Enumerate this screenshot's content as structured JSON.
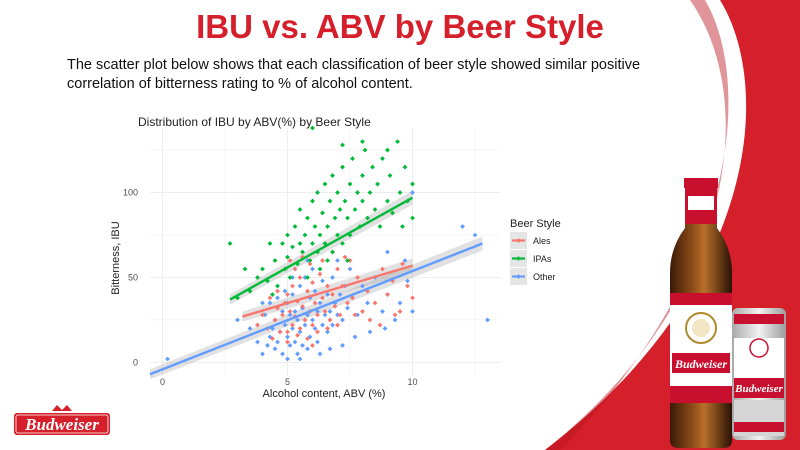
{
  "slide": {
    "title": "IBU vs. ABV by Beer Style",
    "body": "The scatter plot below shows that each classification of beer style showed similar positive correlation of bitterness rating to % of alcohol content.",
    "brand_red": "#d51f2a"
  },
  "brand": {
    "logo_text": "Budweiser",
    "bottle_label": "Budweiser",
    "can_label": "Budweiser"
  },
  "chart_data": {
    "type": "scatter",
    "title": "Distribution of IBU by ABV(%) by Beer Style",
    "xlabel": "Alcohol content, ABV (%)",
    "ylabel": "Bitterness, IBU",
    "xlim": [
      -0.5,
      13.5
    ],
    "ylim": [
      -8,
      138
    ],
    "xticks": [
      0,
      5,
      10
    ],
    "yticks": [
      0,
      50,
      100
    ],
    "grid": true,
    "legend": {
      "title": "Beer Style",
      "placement": "right"
    },
    "series": [
      {
        "name": "Ales",
        "color": "#f8766d",
        "trend": {
          "x": [
            3.2,
            10.0
          ],
          "y": [
            27,
            57
          ]
        },
        "points": [
          [
            4.2,
            20
          ],
          [
            4.5,
            25
          ],
          [
            4.6,
            32
          ],
          [
            4.8,
            28
          ],
          [
            4.9,
            35
          ],
          [
            5.0,
            18
          ],
          [
            5.0,
            40
          ],
          [
            5.1,
            30
          ],
          [
            5.2,
            22
          ],
          [
            5.2,
            45
          ],
          [
            5.3,
            27
          ],
          [
            5.4,
            36
          ],
          [
            5.5,
            20
          ],
          [
            5.5,
            50
          ],
          [
            5.6,
            33
          ],
          [
            5.7,
            25
          ],
          [
            5.8,
            42
          ],
          [
            5.9,
            30
          ],
          [
            6.0,
            22
          ],
          [
            6.0,
            47
          ],
          [
            6.1,
            35
          ],
          [
            6.2,
            28
          ],
          [
            6.3,
            52
          ],
          [
            6.4,
            38
          ],
          [
            6.5,
            30
          ],
          [
            6.6,
            45
          ],
          [
            6.7,
            25
          ],
          [
            6.8,
            40
          ],
          [
            6.9,
            33
          ],
          [
            7.0,
            55
          ],
          [
            7.1,
            28
          ],
          [
            7.2,
            45
          ],
          [
            7.4,
            35
          ],
          [
            7.5,
            60
          ],
          [
            7.6,
            38
          ],
          [
            7.8,
            50
          ],
          [
            8.0,
            30
          ],
          [
            8.2,
            42
          ],
          [
            8.5,
            35
          ],
          [
            8.8,
            55
          ],
          [
            9.0,
            40
          ],
          [
            9.2,
            48
          ],
          [
            9.5,
            30
          ],
          [
            9.8,
            45
          ],
          [
            10.0,
            38
          ],
          [
            4.4,
            14
          ],
          [
            4.7,
            18
          ],
          [
            5.0,
            12
          ],
          [
            5.4,
            16
          ],
          [
            5.8,
            14
          ],
          [
            6.2,
            18
          ],
          [
            6.6,
            20
          ],
          [
            7.0,
            22
          ],
          [
            5.1,
            60
          ],
          [
            5.6,
            62
          ],
          [
            6.8,
            65
          ],
          [
            7.3,
            62
          ],
          [
            8.3,
            25
          ],
          [
            9.6,
            58
          ],
          [
            6.0,
            10
          ],
          [
            3.8,
            22
          ],
          [
            4.0,
            28
          ],
          [
            5.3,
            55
          ],
          [
            5.9,
            58
          ],
          [
            6.4,
            60
          ],
          [
            7.7,
            28
          ],
          [
            8.7,
            22
          ],
          [
            9.3,
            28
          ],
          [
            4.3,
            38
          ],
          [
            4.6,
            42
          ]
        ]
      },
      {
        "name": "IPAs",
        "color": "#00ba38",
        "trend": {
          "x": [
            2.7,
            10.0
          ],
          "y": [
            37,
            97
          ]
        },
        "points": [
          [
            2.7,
            70
          ],
          [
            3.0,
            38
          ],
          [
            3.5,
            42
          ],
          [
            3.8,
            50
          ],
          [
            4.0,
            55
          ],
          [
            4.2,
            48
          ],
          [
            4.3,
            70
          ],
          [
            4.5,
            60
          ],
          [
            4.6,
            45
          ],
          [
            4.8,
            70
          ],
          [
            4.9,
            55
          ],
          [
            5.0,
            62
          ],
          [
            5.0,
            75
          ],
          [
            5.1,
            50
          ],
          [
            5.2,
            68
          ],
          [
            5.3,
            80
          ],
          [
            5.4,
            58
          ],
          [
            5.5,
            70
          ],
          [
            5.5,
            90
          ],
          [
            5.6,
            65
          ],
          [
            5.7,
            75
          ],
          [
            5.8,
            85
          ],
          [
            5.9,
            60
          ],
          [
            6.0,
            70
          ],
          [
            6.0,
            95
          ],
          [
            6.1,
            80
          ],
          [
            6.2,
            65
          ],
          [
            6.2,
            100
          ],
          [
            6.3,
            75
          ],
          [
            6.4,
            88
          ],
          [
            6.5,
            70
          ],
          [
            6.5,
            105
          ],
          [
            6.6,
            80
          ],
          [
            6.7,
            95
          ],
          [
            6.8,
            65
          ],
          [
            6.8,
            110
          ],
          [
            6.9,
            85
          ],
          [
            7.0,
            75
          ],
          [
            7.0,
            100
          ],
          [
            7.1,
            90
          ],
          [
            7.2,
            70
          ],
          [
            7.2,
            115
          ],
          [
            7.3,
            95
          ],
          [
            7.4,
            85
          ],
          [
            7.5,
            105
          ],
          [
            7.5,
            75
          ],
          [
            7.6,
            120
          ],
          [
            7.7,
            90
          ],
          [
            7.8,
            100
          ],
          [
            7.9,
            80
          ],
          [
            8.0,
            110
          ],
          [
            8.0,
            95
          ],
          [
            8.1,
            125
          ],
          [
            8.2,
            85
          ],
          [
            8.3,
            100
          ],
          [
            8.4,
            115
          ],
          [
            8.5,
            90
          ],
          [
            8.6,
            105
          ],
          [
            8.7,
            80
          ],
          [
            8.8,
            120
          ],
          [
            9.0,
            95
          ],
          [
            9.1,
            110
          ],
          [
            9.2,
            88
          ],
          [
            9.4,
            130
          ],
          [
            9.5,
            100
          ],
          [
            9.6,
            80
          ],
          [
            9.7,
            115
          ],
          [
            9.8,
            95
          ],
          [
            10.0,
            105
          ],
          [
            10.0,
            85
          ],
          [
            6.0,
            138
          ],
          [
            7.2,
            128
          ],
          [
            8.0,
            130
          ],
          [
            9.0,
            125
          ],
          [
            5.8,
            50
          ],
          [
            6.3,
            55
          ],
          [
            4.4,
            40
          ],
          [
            3.3,
            55
          ],
          [
            6.6,
            60
          ],
          [
            7.4,
            60
          ]
        ]
      },
      {
        "name": "Other",
        "color": "#619cff",
        "trend": {
          "x": [
            -0.5,
            12.8
          ],
          "y": [
            -7,
            70
          ]
        },
        "points": [
          [
            0.2,
            2
          ],
          [
            4.0,
            5
          ],
          [
            4.2,
            10
          ],
          [
            4.3,
            15
          ],
          [
            4.4,
            20
          ],
          [
            4.5,
            8
          ],
          [
            4.5,
            25
          ],
          [
            4.6,
            12
          ],
          [
            4.7,
            18
          ],
          [
            4.8,
            30
          ],
          [
            4.8,
            5
          ],
          [
            4.9,
            22
          ],
          [
            5.0,
            15
          ],
          [
            5.0,
            35
          ],
          [
            5.0,
            2
          ],
          [
            5.1,
            28
          ],
          [
            5.1,
            10
          ],
          [
            5.2,
            20
          ],
          [
            5.2,
            40
          ],
          [
            5.3,
            12
          ],
          [
            5.3,
            30
          ],
          [
            5.4,
            25
          ],
          [
            5.4,
            5
          ],
          [
            5.5,
            18
          ],
          [
            5.5,
            45
          ],
          [
            5.6,
            32
          ],
          [
            5.6,
            10
          ],
          [
            5.7,
            22
          ],
          [
            5.7,
            50
          ],
          [
            5.8,
            28
          ],
          [
            5.8,
            8
          ],
          [
            5.9,
            38
          ],
          [
            5.9,
            15
          ],
          [
            6.0,
            25
          ],
          [
            6.0,
            55
          ],
          [
            6.1,
            20
          ],
          [
            6.1,
            42
          ],
          [
            6.2,
            30
          ],
          [
            6.2,
            12
          ],
          [
            6.3,
            35
          ],
          [
            6.4,
            22
          ],
          [
            6.4,
            48
          ],
          [
            6.5,
            28
          ],
          [
            6.6,
            18
          ],
          [
            6.6,
            40
          ],
          [
            6.7,
            30
          ],
          [
            6.8,
            50
          ],
          [
            6.8,
            22
          ],
          [
            6.9,
            35
          ],
          [
            7.0,
            28
          ],
          [
            7.0,
            60
          ],
          [
            7.1,
            40
          ],
          [
            7.2,
            25
          ],
          [
            7.3,
            45
          ],
          [
            7.4,
            32
          ],
          [
            7.5,
            55
          ],
          [
            7.6,
            38
          ],
          [
            7.8,
            28
          ],
          [
            8.0,
            45
          ],
          [
            8.2,
            35
          ],
          [
            8.5,
            50
          ],
          [
            8.8,
            30
          ],
          [
            9.0,
            40
          ],
          [
            9.3,
            25
          ],
          [
            9.5,
            35
          ],
          [
            9.8,
            48
          ],
          [
            10.0,
            30
          ],
          [
            12.0,
            80
          ],
          [
            12.5,
            75
          ],
          [
            13.0,
            25
          ],
          [
            4.1,
            28
          ],
          [
            4.3,
            35
          ],
          [
            4.6,
            38
          ],
          [
            4.9,
            42
          ],
          [
            5.2,
            50
          ],
          [
            5.5,
            2
          ],
          [
            5.8,
            60
          ],
          [
            6.3,
            5
          ],
          [
            6.7,
            8
          ],
          [
            7.2,
            10
          ],
          [
            3.0,
            25
          ],
          [
            3.5,
            20
          ],
          [
            3.8,
            12
          ],
          [
            4.0,
            35
          ],
          [
            7.7,
            15
          ],
          [
            8.3,
            18
          ],
          [
            8.9,
            20
          ],
          [
            9.7,
            60
          ],
          [
            10.0,
            100
          ],
          [
            9.0,
            65
          ]
        ]
      }
    ]
  }
}
